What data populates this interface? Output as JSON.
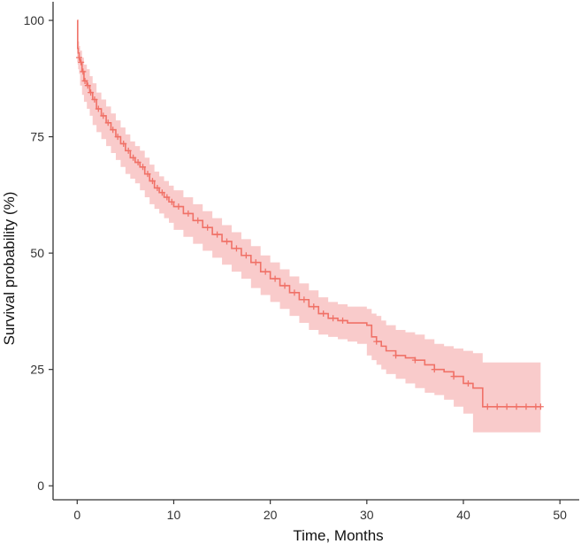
{
  "chart_data": {
    "type": "line",
    "subtype": "kaplan-meier survival curve with confidence band",
    "title": "",
    "xlabel": "Time, Months",
    "ylabel": "Survival probability (%)",
    "xlim": [
      -2.5,
      52
    ],
    "ylim": [
      -3,
      104
    ],
    "xticks": [
      0,
      10,
      20,
      30,
      40,
      50
    ],
    "yticks": [
      0,
      25,
      50,
      75,
      100
    ],
    "grid": false,
    "legend": "none",
    "colors": {
      "line": "#f07167",
      "band": "#f9c8c8",
      "axis": "#333333"
    },
    "series": [
      {
        "name": "",
        "step_x": [
          0,
          0.05,
          0.1,
          0.2,
          0.3,
          0.5,
          0.7,
          1.0,
          1.3,
          1.6,
          2,
          2.5,
          3,
          3.5,
          4,
          4.5,
          5,
          5.5,
          6,
          6.5,
          7,
          7.5,
          8,
          8.5,
          9,
          9.5,
          10,
          11,
          12,
          13,
          14,
          15,
          16,
          17,
          18,
          19,
          20,
          21,
          22,
          23,
          24,
          25,
          26,
          27,
          28,
          29,
          30,
          30.5,
          31,
          31.5,
          32,
          33,
          34,
          35,
          36,
          37,
          38,
          39,
          40,
          41,
          42,
          43,
          44,
          45,
          46,
          47,
          48
        ],
        "step_y": [
          100,
          94,
          93,
          92,
          91,
          89,
          87,
          86,
          84.5,
          83,
          81,
          79.5,
          78,
          76.5,
          75,
          73.5,
          72,
          70.5,
          69.5,
          68.5,
          67,
          65.5,
          64,
          63,
          62,
          61,
          60,
          58.5,
          57,
          55.5,
          54,
          52.5,
          51,
          49.5,
          48,
          46,
          44.5,
          43,
          41.5,
          40,
          38.5,
          37,
          36,
          35.5,
          35,
          35,
          34.5,
          32,
          31,
          30,
          29,
          28,
          27.5,
          27,
          26,
          25,
          24.5,
          23.5,
          22,
          21,
          17,
          17,
          17,
          17,
          17,
          17,
          17
        ],
        "ci_upper": [
          100,
          96,
          95.5,
          94.5,
          93.5,
          92,
          90.5,
          89.5,
          88,
          86.5,
          84.5,
          83,
          81.5,
          80,
          78.5,
          77,
          75.5,
          74,
          73,
          72,
          70.5,
          69,
          67.5,
          66.5,
          65.5,
          64.5,
          63.5,
          62,
          60.5,
          59,
          57.5,
          56,
          54.5,
          53,
          51.5,
          49.5,
          48,
          46.5,
          45,
          43.5,
          42,
          40.5,
          39.5,
          39,
          38.5,
          38.5,
          38,
          37,
          36.5,
          35.5,
          34.5,
          33.5,
          33,
          32.5,
          31.5,
          30.5,
          30,
          29.5,
          29,
          28.5,
          26.5,
          26.5,
          26.5,
          26.5,
          26.5,
          26.5,
          26.5
        ],
        "ci_lower": [
          100,
          91,
          90.5,
          89.5,
          88.5,
          86,
          84,
          82.5,
          81,
          79.5,
          77.5,
          76,
          74.5,
          73,
          71.5,
          70,
          68.5,
          67,
          66,
          65,
          63.5,
          62,
          60.5,
          59.5,
          58.5,
          57.5,
          56.5,
          55,
          53.5,
          52,
          50.5,
          49,
          47.5,
          46,
          44.5,
          42.5,
          41,
          39.5,
          38,
          36.5,
          35,
          33.5,
          32.5,
          32,
          31.5,
          31,
          30.5,
          28,
          27,
          26,
          25,
          24,
          23,
          22,
          21,
          20,
          19.5,
          18.5,
          17,
          15.5,
          11.5,
          11.5,
          11.5,
          11.5,
          11.5,
          11.5,
          11.5
        ],
        "censor_x": [
          0.2,
          0.4,
          0.6,
          0.8,
          1.1,
          1.4,
          1.8,
          2.2,
          2.7,
          3.2,
          3.7,
          4.2,
          4.8,
          5.3,
          5.8,
          6.3,
          6.8,
          7.3,
          7.8,
          8.3,
          8.8,
          9.3,
          9.8,
          10.5,
          11.5,
          12.5,
          13.5,
          14.5,
          15.5,
          16.5,
          17.5,
          18.5,
          19.5,
          20.5,
          21.5,
          22.5,
          23.5,
          24.5,
          25.5,
          26.5,
          27.5,
          31,
          33,
          35,
          37,
          39,
          40.5,
          42.5,
          43.5,
          44.5,
          45.5,
          46.5,
          47.5,
          48
        ]
      }
    ]
  }
}
